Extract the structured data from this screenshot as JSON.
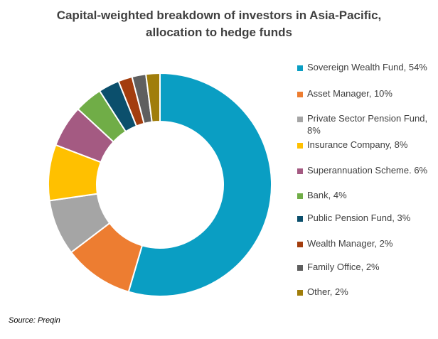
{
  "chart_data": {
    "type": "pie",
    "title_lines": [
      "Capital-weighted breakdown of investors in Asia-Pacific,",
      "allocation to hedge funds"
    ],
    "legend_position": "right",
    "slices": [
      {
        "label": "Sovereign Wealth Fund, 54%",
        "value": 54,
        "color": "#0a9ec3"
      },
      {
        "label": "Asset Manager, 10%",
        "value": 10,
        "color": "#ed7d31"
      },
      {
        "label": "Private Sector Pension Fund, 8%",
        "value": 8,
        "color": "#a5a5a5"
      },
      {
        "label": "Insurance Company, 8%",
        "value": 8,
        "color": "#ffc000"
      },
      {
        "label": "Superannuation Scheme. 6%",
        "value": 6,
        "color": "#a45a82"
      },
      {
        "label": "Bank, 4%",
        "value": 4,
        "color": "#70ad47"
      },
      {
        "label": "Public Pension Fund, 3%",
        "value": 3,
        "color": "#0b4f6c"
      },
      {
        "label": "Wealth Manager, 2%",
        "value": 2,
        "color": "#a33d0e"
      },
      {
        "label": "Family Office, 2%",
        "value": 2,
        "color": "#5f5f5f"
      },
      {
        "label": "Other, 2%",
        "value": 2,
        "color": "#a07d0a"
      }
    ]
  },
  "source": "Source: Preqin"
}
